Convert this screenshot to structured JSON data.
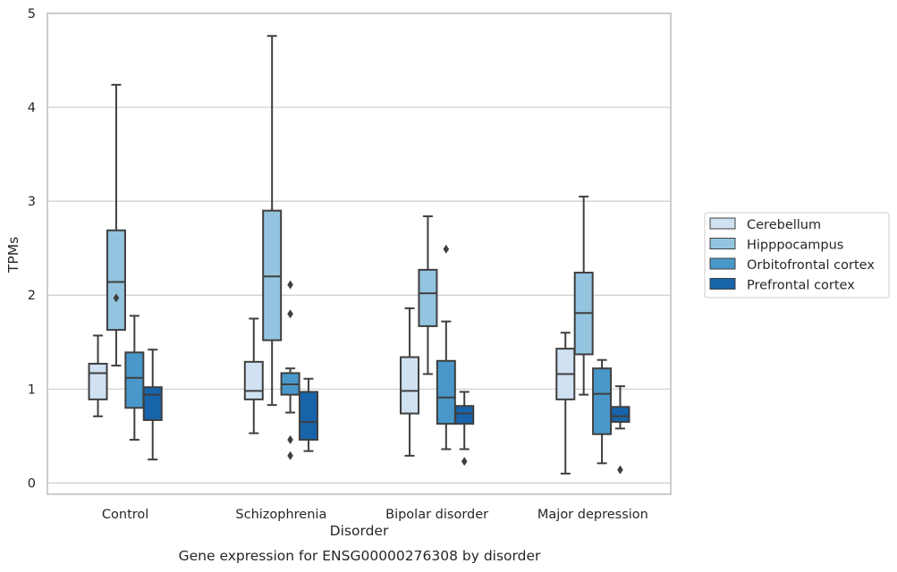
{
  "chart_data": {
    "type": "box",
    "xlabel": "Disorder",
    "ylabel": "TPMs",
    "ylim": [
      -0.12,
      5.0
    ],
    "yticks": [
      0,
      1,
      2,
      3,
      4,
      5
    ],
    "grid": true,
    "legend_position": "right",
    "categories": [
      "Control",
      "Schizophrenia",
      "Bipolar disorder",
      "Major depression"
    ],
    "series": [
      {
        "name": "Cerebellum",
        "color": "#d0e1f2",
        "boxes": [
          {
            "whislo": 0.71,
            "q1": 0.89,
            "med": 1.17,
            "q3": 1.27,
            "whishi": 1.57,
            "fliers": []
          },
          {
            "whislo": 0.53,
            "q1": 0.89,
            "med": 0.98,
            "q3": 1.29,
            "whishi": 1.75,
            "fliers": []
          },
          {
            "whislo": 0.29,
            "q1": 0.74,
            "med": 0.98,
            "q3": 1.34,
            "whishi": 1.86,
            "fliers": []
          },
          {
            "whislo": 0.1,
            "q1": 0.89,
            "med": 1.16,
            "q3": 1.43,
            "whishi": 1.6,
            "fliers": []
          }
        ]
      },
      {
        "name": "Hipppocampus",
        "color": "#94c4df",
        "boxes": [
          {
            "whislo": 1.25,
            "q1": 1.63,
            "med": 2.14,
            "q3": 2.69,
            "whishi": 4.24,
            "fliers": [
              1.97
            ]
          },
          {
            "whislo": 0.83,
            "q1": 1.52,
            "med": 2.2,
            "q3": 2.9,
            "whishi": 4.76,
            "fliers": []
          },
          {
            "whislo": 1.16,
            "q1": 1.67,
            "med": 2.02,
            "q3": 2.27,
            "whishi": 2.84,
            "fliers": []
          },
          {
            "whislo": 0.94,
            "q1": 1.37,
            "med": 1.81,
            "q3": 2.24,
            "whishi": 3.05,
            "fliers": []
          }
        ]
      },
      {
        "name": "Orbitofrontal cortex",
        "color": "#4a98c9",
        "boxes": [
          {
            "whislo": 0.46,
            "q1": 0.8,
            "med": 1.12,
            "q3": 1.39,
            "whishi": 1.78,
            "fliers": []
          },
          {
            "whislo": 0.75,
            "q1": 0.94,
            "med": 1.05,
            "q3": 1.17,
            "whishi": 1.22,
            "fliers": [
              2.11,
              1.8,
              0.46,
              0.29
            ]
          },
          {
            "whislo": 0.36,
            "q1": 0.63,
            "med": 0.91,
            "q3": 1.3,
            "whishi": 1.72,
            "fliers": [
              2.49
            ]
          },
          {
            "whislo": 0.21,
            "q1": 0.52,
            "med": 0.95,
            "q3": 1.22,
            "whishi": 1.31,
            "fliers": []
          }
        ]
      },
      {
        "name": "Prefrontal cortex",
        "color": "#1764ab",
        "boxes": [
          {
            "whislo": 0.25,
            "q1": 0.67,
            "med": 0.94,
            "q3": 1.02,
            "whishi": 1.42,
            "fliers": []
          },
          {
            "whislo": 0.34,
            "q1": 0.46,
            "med": 0.65,
            "q3": 0.97,
            "whishi": 1.11,
            "fliers": []
          },
          {
            "whislo": 0.36,
            "q1": 0.63,
            "med": 0.74,
            "q3": 0.82,
            "whishi": 0.97,
            "fliers": [
              0.23
            ]
          },
          {
            "whislo": 0.58,
            "q1": 0.65,
            "med": 0.71,
            "q3": 0.81,
            "whishi": 1.03,
            "fliers": [
              0.14
            ]
          }
        ]
      }
    ]
  },
  "caption": "Gene expression for ENSG00000276308 by disorder"
}
